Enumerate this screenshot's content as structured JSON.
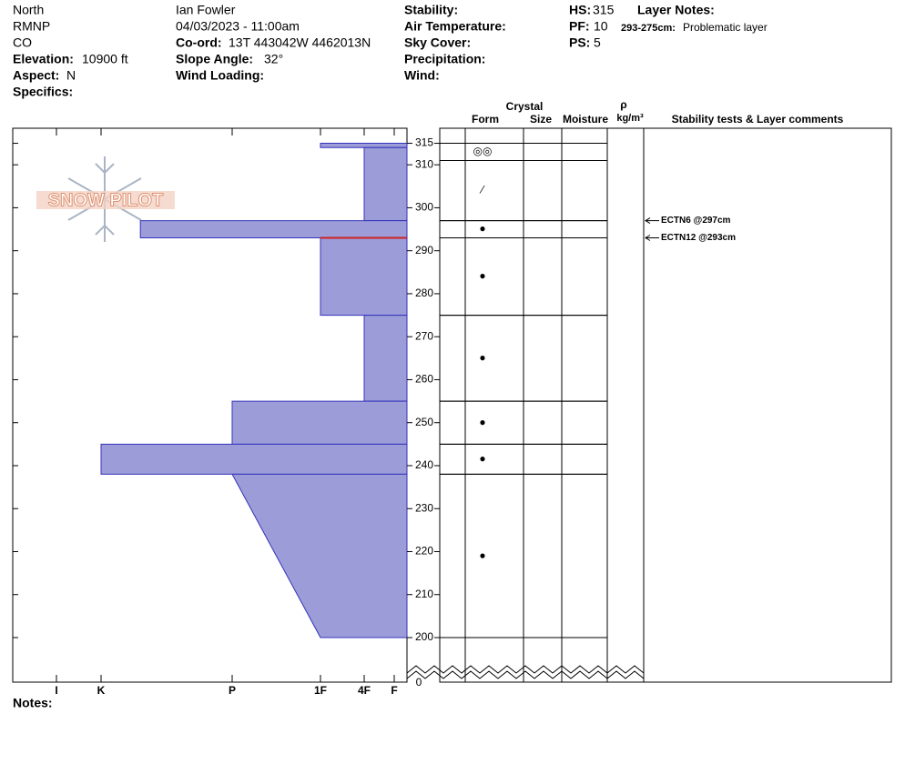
{
  "header": {
    "lines": [
      "North",
      "RMNP",
      "CO"
    ],
    "observer": "Ian Fowler",
    "datetime": "04/03/2023 - 11:00am",
    "elevation": {
      "label": "Elevation:",
      "value": "10900 ft"
    },
    "aspect": {
      "label": "Aspect:",
      "value": "N"
    },
    "specifics": {
      "label": "Specifics:"
    },
    "coord": {
      "label": "Co-ord:",
      "value": "13T 443042W 4462013N"
    },
    "slope": {
      "label": "Slope Angle:",
      "value": "32°"
    },
    "wind_loading": {
      "label": "Wind Loading:"
    },
    "stability": {
      "label": "Stability:"
    },
    "air_temp": {
      "label": "Air Temperature:"
    },
    "sky": {
      "label": "Sky Cover:"
    },
    "precip": {
      "label": "Precipitation:"
    },
    "wind": {
      "label": "Wind:"
    },
    "hs": {
      "label": "HS:",
      "value": 315
    },
    "pf": {
      "label": "PF:",
      "value": 10
    },
    "ps": {
      "label": "PS:",
      "value": 5
    },
    "layer_notes_title": "Layer Notes:"
  },
  "notes_label": "Notes:",
  "logo": "SNOW PILOT",
  "chart_data": {
    "type": "snow_profile",
    "ylim": [
      200,
      318.5
    ],
    "yticks": [
      200,
      210,
      220,
      230,
      240,
      250,
      260,
      270,
      280,
      290,
      300,
      310,
      315
    ],
    "break_label": "0",
    "hardness_ticks": [
      {
        "value": 6,
        "label": "I"
      },
      {
        "value": 5,
        "label": "K"
      },
      {
        "value": 4,
        "label": "P"
      },
      {
        "value": 3,
        "label": "1F"
      },
      {
        "value": 2,
        "label": "4F"
      },
      {
        "value": 1,
        "label": "F"
      }
    ],
    "color": "#9c9cd8",
    "hardness_layers": [
      {
        "top": 315,
        "bottom": 314,
        "hardness": [
          3,
          3
        ]
      },
      {
        "top": 314,
        "bottom": 297,
        "hardness": [
          2,
          2
        ]
      },
      {
        "top": 297,
        "bottom": 293,
        "hardness": [
          4.7,
          4.7
        ]
      },
      {
        "top": 293,
        "bottom": 275,
        "hardness": [
          3,
          3
        ]
      },
      {
        "top": 275,
        "bottom": 255,
        "hardness": [
          2,
          2
        ]
      },
      {
        "top": 255,
        "bottom": 245,
        "hardness": [
          4,
          4
        ]
      },
      {
        "top": 245,
        "bottom": 238,
        "hardness": [
          5,
          5
        ]
      },
      {
        "top": 238,
        "bottom": 200,
        "hardness": [
          4,
          3
        ]
      }
    ],
    "layer_notes": [
      {
        "range": "293-275cm:",
        "text": "Problematic layer",
        "depth": 293
      }
    ],
    "columns": {
      "crystal": "Crystal",
      "form": "Form",
      "size": "Size",
      "moisture": "Moisture",
      "rho": "ρ",
      "density_unit": "kg/m³",
      "comments": "Stability tests & Layer comments"
    },
    "crystal_layers": [
      {
        "top": 315,
        "bottom": 311,
        "form": "◎◎"
      },
      {
        "top": 311,
        "bottom": 297,
        "form": "⁄"
      },
      {
        "top": 297,
        "bottom": 293,
        "form": "●"
      },
      {
        "top": 293,
        "bottom": 275,
        "form": "●"
      },
      {
        "top": 275,
        "bottom": 255,
        "form": "●"
      },
      {
        "top": 255,
        "bottom": 245,
        "form": "●"
      },
      {
        "top": 245,
        "bottom": 238,
        "form": "●"
      },
      {
        "top": 238,
        "bottom": 200,
        "form": "●"
      }
    ],
    "stability_tests": [
      {
        "label": "ECTN6 @297cm",
        "depth": 297
      },
      {
        "label": "ECTN12 @293cm",
        "depth": 293
      }
    ]
  }
}
